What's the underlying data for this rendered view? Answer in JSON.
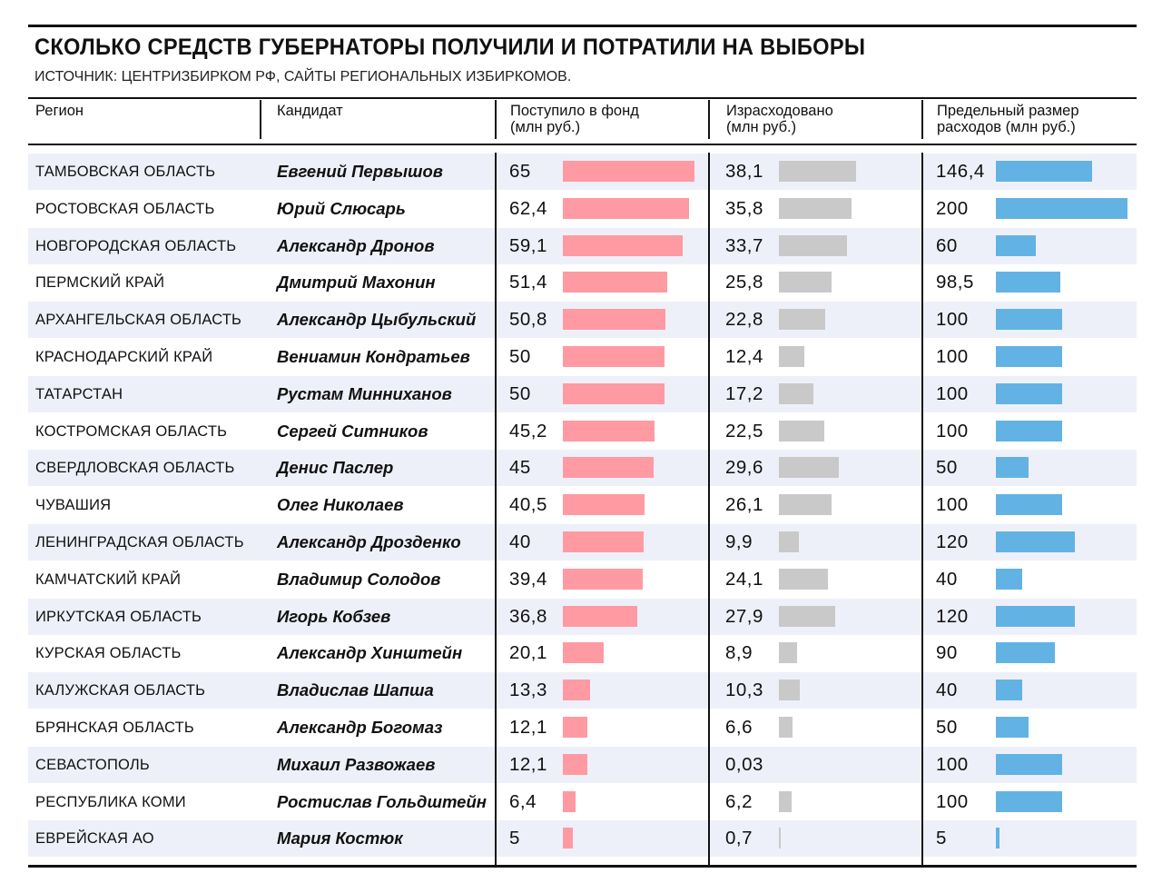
{
  "title": "СКОЛЬКО СРЕДСТВ ГУБЕРНАТОРЫ ПОЛУЧИЛИ И ПОТРАТИЛИ НА ВЫБОРЫ",
  "subtitle": "ИСТОЧНИК: ЦЕНТРИЗБИРКОМ РФ, САЙТЫ РЕГИОНАЛЬНЫХ ИЗБИРКОМОВ.",
  "headers": {
    "region": "Регион",
    "candidate": "Кандидат",
    "received_1": "Поступило в фонд",
    "received_2": "(млн руб.)",
    "spent_1": "Израсходовано",
    "spent_2": "(млн руб.)",
    "limit_1": "Предельный размер",
    "limit_2": "расходов (млн руб.)"
  },
  "colors": {
    "received": "#ff9aa2",
    "spent": "#c9c9c9",
    "limit": "#62b3e4",
    "row_shade": "#eef0f9"
  },
  "chart_data": {
    "type": "table",
    "title": "СКОЛЬКО СРЕДСТВ ГУБЕРНАТОРЫ ПОЛУЧИЛИ И ПОТРАТИЛИ НА ВЫБОРЫ",
    "units": "млн руб.",
    "columns": [
      "Регион",
      "Кандидат",
      "Поступило в фонд",
      "Израсходовано",
      "Предельный размер расходов"
    ],
    "rows": [
      {
        "region": "ТАМБОВСКАЯ ОБЛАСТЬ",
        "candidate": "Евгений Первышов",
        "received": "65",
        "spent": "38,1",
        "limit": "146,4"
      },
      {
        "region": "РОСТОВСКАЯ ОБЛАСТЬ",
        "candidate": "Юрий  Слюсарь",
        "received": "62,4",
        "spent": "35,8",
        "limit": "200"
      },
      {
        "region": "НОВГОРОДСКАЯ ОБЛАСТЬ",
        "candidate": "Александр Дронов",
        "received": "59,1",
        "spent": "33,7",
        "limit": "60"
      },
      {
        "region": "ПЕРМСКИЙ КРАЙ",
        "candidate": "Дмитрий Махонин",
        "received": "51,4",
        "spent": "25,8",
        "limit": "98,5"
      },
      {
        "region": "АРХАНГЕЛЬСКАЯ ОБЛАСТЬ",
        "candidate": "Александр Цыбульский",
        "received": "50,8",
        "spent": "22,8",
        "limit": "100"
      },
      {
        "region": "КРАСНОДАРСКИЙ КРАЙ",
        "candidate": "Вениамин Кондратьев",
        "received": "50",
        "spent": "12,4",
        "limit": "100"
      },
      {
        "region": "ТАТАРСТАН",
        "candidate": "Рустам Минниханов",
        "received": "50",
        "spent": "17,2",
        "limit": "100"
      },
      {
        "region": "КОСТРОМСКАЯ ОБЛАСТЬ",
        "candidate": "Сергей Ситников",
        "received": "45,2",
        "spent": "22,5",
        "limit": "100"
      },
      {
        "region": "СВЕРДЛОВСКАЯ ОБЛАСТЬ",
        "candidate": "Денис Паслер",
        "received": "45",
        "spent": "29,6",
        "limit": "50"
      },
      {
        "region": "ЧУВАШИЯ",
        "candidate": "Олег Николаев",
        "received": "40,5",
        "spent": "26,1",
        "limit": "100"
      },
      {
        "region": "ЛЕНИНГРАДСКАЯ ОБЛАСТЬ",
        "candidate": "Александр Дрозденко",
        "received": "40",
        "spent": "9,9",
        "limit": "120"
      },
      {
        "region": "КАМЧАТСКИЙ КРАЙ",
        "candidate": "Владимир Солодов",
        "received": "39,4",
        "spent": "24,1",
        "limit": "40"
      },
      {
        "region": "ИРКУТСКАЯ ОБЛАСТЬ",
        "candidate": "Игорь Кобзев",
        "received": "36,8",
        "spent": "27,9",
        "limit": "120"
      },
      {
        "region": "КУРСКАЯ ОБЛАСТЬ",
        "candidate": "Александр Хинштейн",
        "received": "20,1",
        "spent": "8,9",
        "limit": "90"
      },
      {
        "region": "КАЛУЖСКАЯ ОБЛАСТЬ",
        "candidate": "Владислав Шапша",
        "received": "13,3",
        "spent": "10,3",
        "limit": "40"
      },
      {
        "region": "БРЯНСКАЯ ОБЛАСТЬ",
        "candidate": "Александр Богомаз",
        "received": "12,1",
        "spent": "6,6",
        "limit": "50"
      },
      {
        "region": "СЕВАСТОПОЛЬ",
        "candidate": "Михаил Развожаев",
        "received": "12,1",
        "spent": "0,03",
        "limit": "100"
      },
      {
        "region": "РЕСПУБЛИКА КОМИ",
        "candidate": "Ростислав Гольдштейн",
        "received": "6,4",
        "spent": "6,2",
        "limit": "100"
      },
      {
        "region": "ЕВРЕЙСКАЯ АО",
        "candidate": "Мария Костюк",
        "received": "5",
        "spent": "0,7",
        "limit": "5"
      }
    ]
  }
}
